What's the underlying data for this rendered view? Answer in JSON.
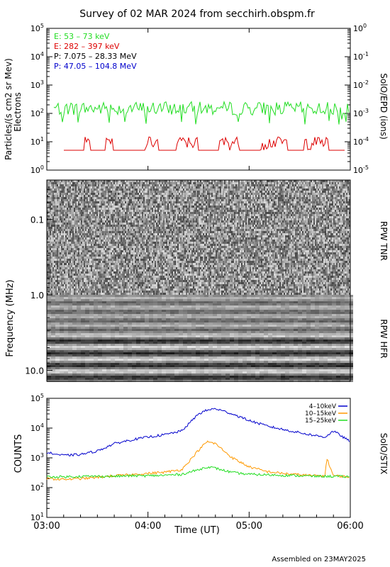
{
  "title": "Survey of 02 MAR 2024 from secchirh.obspm.fr",
  "footer": "Assembled on 23MAY2025",
  "colors": {
    "e_low": "#22dd22",
    "e_high": "#dd0000",
    "p_low": "#000000",
    "p_high": "#0000cc",
    "stix_4_10": "#0000cc",
    "stix_10_15": "#ff9900",
    "stix_15_25": "#22dd22"
  },
  "chart_data": [
    {
      "id": "epd",
      "type": "line",
      "ylabel_left": "Particles/(s cm2 sr Mev)",
      "ylabel_left2": "Electrons",
      "ylabel_right": "SolO/EPD (ions)",
      "y_scale": "log",
      "ylim": [
        1,
        100000
      ],
      "left_ticks": [
        "10^0",
        "10^1",
        "10^2",
        "10^3",
        "10^4",
        "10^5"
      ],
      "right_ylim": [
        1e-05,
        1
      ],
      "right_ticks": [
        "10^-5",
        "10^-4",
        "10^-3",
        "10^-2",
        "10^-1",
        "10^0"
      ],
      "legend": [
        {
          "label": "E: 53 – 73 keV",
          "color": "#22dd22"
        },
        {
          "label": "E: 282 – 397 keV",
          "color": "#dd0000"
        },
        {
          "label": "P: 7.075 – 28.33 MeV",
          "color": "#000000"
        },
        {
          "label": "P: 47.05 – 104.8 MeV",
          "color": "#0000cc"
        }
      ],
      "series": [
        {
          "name": "E: 53 – 73 keV",
          "values_range": [
            40,
            350
          ],
          "typical": 150
        },
        {
          "name": "E: 282 – 397 keV",
          "baseline": 5,
          "burst_max": 15
        }
      ]
    },
    {
      "id": "rpw",
      "type": "heatmap",
      "ylabel": "Frequency (MHz)",
      "y_scale": "log",
      "ylim": [
        14,
        0.03
      ],
      "y_ticks": [
        "0.1",
        "1.0",
        "10.0"
      ],
      "labels_right": [
        "RPW TNR",
        "RPW HFR"
      ]
    },
    {
      "id": "stix",
      "type": "line",
      "ylabel": "COUNTS",
      "ylabel_right": "SolO/STIX",
      "y_scale": "log",
      "ylim": [
        10,
        100000
      ],
      "y_ticks": [
        "10^1",
        "10^2",
        "10^3",
        "10^4",
        "10^5"
      ],
      "x_ticks": [
        "03:00",
        "04:00",
        "05:00",
        "06:00"
      ],
      "xlabel": "Time (UT)",
      "legend": [
        {
          "label": "4–10keV",
          "color": "#0000cc"
        },
        {
          "label": "10–15keV",
          "color": "#ff9900"
        },
        {
          "label": "15–25keV",
          "color": "#22dd22"
        }
      ],
      "series": [
        {
          "name": "4–10keV",
          "x": [
            "03:00",
            "03:10",
            "03:20",
            "03:30",
            "03:40",
            "03:50",
            "04:00",
            "04:10",
            "04:20",
            "04:30",
            "04:35",
            "04:40",
            "04:50",
            "05:00",
            "05:10",
            "05:20",
            "05:30",
            "05:40",
            "05:45",
            "05:50",
            "06:00"
          ],
          "values": [
            1500,
            1200,
            1300,
            1700,
            3000,
            4000,
            5000,
            6000,
            8000,
            30000,
            40000,
            45000,
            30000,
            18000,
            12000,
            9000,
            7000,
            5500,
            5000,
            8000,
            3500
          ]
        },
        {
          "name": "10–15keV",
          "x": [
            "03:00",
            "03:10",
            "03:20",
            "03:30",
            "03:40",
            "03:50",
            "04:00",
            "04:10",
            "04:20",
            "04:30",
            "04:35",
            "04:40",
            "04:50",
            "05:00",
            "05:10",
            "05:20",
            "05:30",
            "05:40",
            "05:45",
            "05:46",
            "05:50",
            "06:00"
          ],
          "values": [
            200,
            190,
            200,
            220,
            250,
            270,
            300,
            330,
            400,
            1800,
            3500,
            3000,
            1000,
            500,
            350,
            300,
            270,
            250,
            250,
            1000,
            250,
            230
          ]
        },
        {
          "name": "15–25keV",
          "x": [
            "03:00",
            "03:10",
            "03:20",
            "03:30",
            "03:40",
            "03:50",
            "04:00",
            "04:10",
            "04:20",
            "04:30",
            "04:35",
            "04:40",
            "04:50",
            "05:00",
            "05:10",
            "05:20",
            "05:30",
            "05:40",
            "05:50",
            "06:00"
          ],
          "values": [
            230,
            230,
            240,
            240,
            240,
            250,
            250,
            260,
            280,
            400,
            500,
            450,
            320,
            280,
            270,
            260,
            250,
            240,
            240,
            230
          ]
        }
      ]
    }
  ]
}
